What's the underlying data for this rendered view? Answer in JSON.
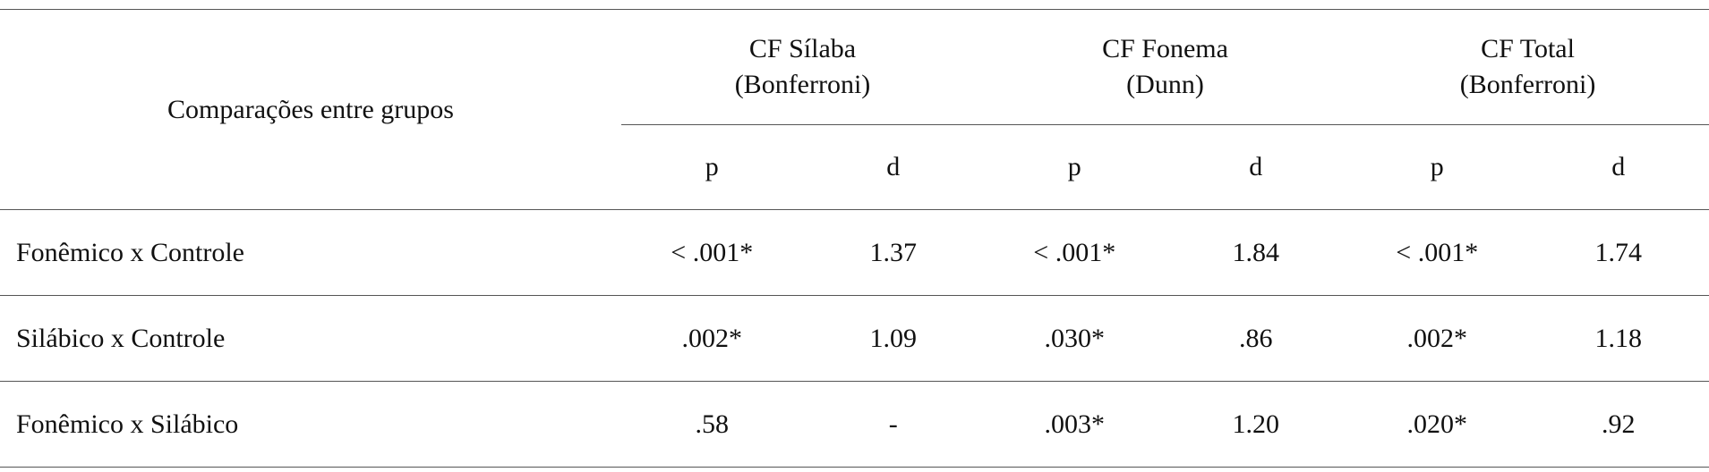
{
  "table": {
    "corner": "Comparações entre grupos",
    "groups": [
      {
        "lines": [
          "CF Sílaba",
          "(Bonferroni)"
        ]
      },
      {
        "lines": [
          "CF Fonema",
          "(Dunn)"
        ]
      },
      {
        "lines": [
          "CF Total",
          "(Bonferroni)"
        ]
      }
    ],
    "subheaders": [
      "p",
      "d",
      "p",
      "d",
      "p",
      "d"
    ],
    "rows": [
      [
        "Fonêmico x Controle",
        "< .001*",
        "1.37",
        "< .001*",
        "1.84",
        "< .001*",
        "1.74"
      ],
      [
        "Silábico x Controle",
        ".002*",
        "1.09",
        ".030*",
        ".86",
        ".002*",
        "1.18"
      ],
      [
        "Fonêmico x Silábico",
        ".58",
        "-",
        ".003*",
        "1.20",
        ".020*",
        ".92"
      ]
    ]
  }
}
